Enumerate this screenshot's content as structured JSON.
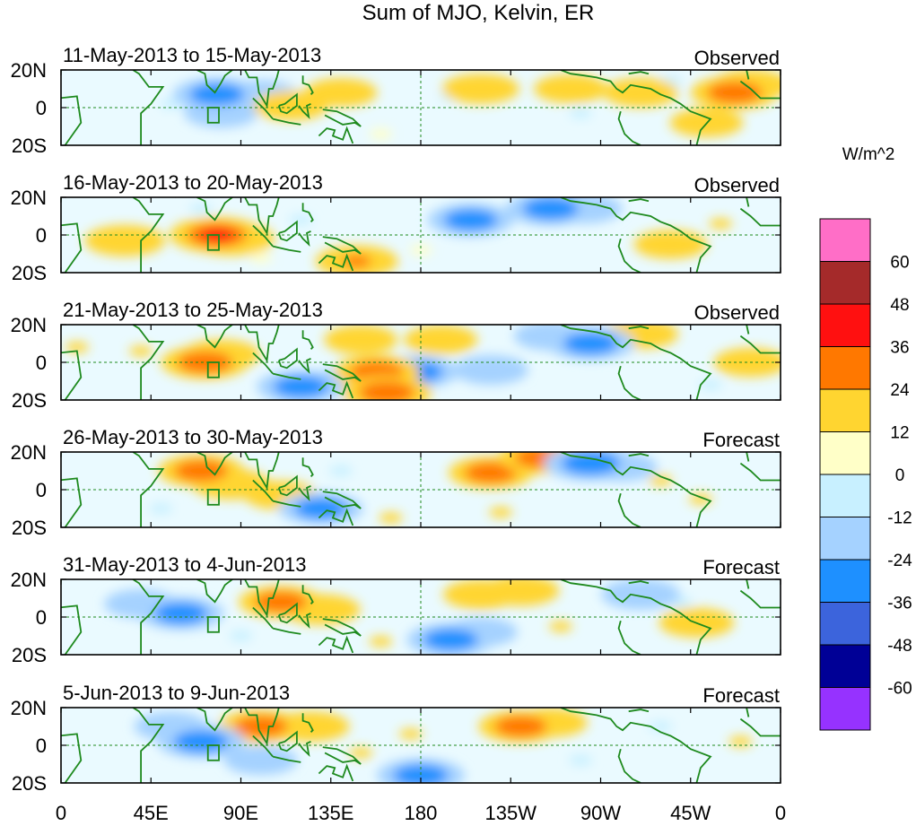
{
  "chart_data": {
    "type": "heatmap",
    "title": "Sum of MJO, Kelvin, ER",
    "units_label": "W/m^2",
    "x_ticks": [
      "0",
      "45E",
      "90E",
      "135E",
      "180",
      "135W",
      "90W",
      "45W",
      "0"
    ],
    "x_tick_lon": [
      0,
      45,
      90,
      135,
      180,
      225,
      270,
      315,
      360
    ],
    "y_ticks": [
      "20N",
      "0",
      "20S"
    ],
    "y_tick_lat": [
      20,
      0,
      -20
    ],
    "lat_range": [
      -20,
      20
    ],
    "lon_range": [
      0,
      360
    ],
    "reference_lines": {
      "equator_lat": 0,
      "dateline_lon": 180
    },
    "colorbar": {
      "levels": [
        -60,
        -48,
        -36,
        -24,
        -12,
        0,
        12,
        24,
        36,
        48,
        60
      ],
      "level_labels": [
        "60",
        "48",
        "36",
        "24",
        "12",
        "0",
        "-12",
        "-24",
        "-36",
        "-48",
        "-60"
      ],
      "colors_top_to_bottom": [
        "#ff6ec7",
        "#a52a2a",
        "#ff1010",
        "#ff7800",
        "#ffd530",
        "#ffffc8",
        "#c8f0ff",
        "#a5d2ff",
        "#1e90ff",
        "#3c64dc",
        "#000096",
        "#9632ff"
      ]
    },
    "panels": [
      {
        "period": "11-May-2013 to 15-May-2013",
        "status": "Observed",
        "features": [
          {
            "lon": 78,
            "lat": 7,
            "value": -30
          },
          {
            "lon": 100,
            "lat": 7,
            "value": -14
          },
          {
            "lon": 115,
            "lat": 1,
            "value": 16
          },
          {
            "lon": 140,
            "lat": 8,
            "value": 13
          },
          {
            "lon": 80,
            "lat": -3,
            "value": -14
          },
          {
            "lon": 55,
            "lat": 2,
            "value": -10
          },
          {
            "lon": 210,
            "lat": 10,
            "value": 18
          },
          {
            "lon": 195,
            "lat": 6,
            "value": -10
          },
          {
            "lon": 255,
            "lat": 10,
            "value": 14
          },
          {
            "lon": 290,
            "lat": 8,
            "value": 16
          },
          {
            "lon": 337,
            "lat": 8,
            "value": 30
          },
          {
            "lon": 345,
            "lat": 12,
            "value": 20
          },
          {
            "lon": 323,
            "lat": -8,
            "value": 14
          },
          {
            "lon": 305,
            "lat": 14,
            "value": -12
          },
          {
            "lon": 260,
            "lat": -3,
            "value": -10
          },
          {
            "lon": 160,
            "lat": -14,
            "value": 10
          }
        ]
      },
      {
        "period": "16-May-2013 to 20-May-2013",
        "status": "Observed",
        "features": [
          {
            "lon": 78,
            "lat": 0,
            "value": 38
          },
          {
            "lon": 85,
            "lat": -2,
            "value": 30
          },
          {
            "lon": 32,
            "lat": -3,
            "value": 22
          },
          {
            "lon": 148,
            "lat": -14,
            "value": 24
          },
          {
            "lon": 120,
            "lat": 8,
            "value": -12
          },
          {
            "lon": 205,
            "lat": 8,
            "value": -28
          },
          {
            "lon": 245,
            "lat": 14,
            "value": -32
          },
          {
            "lon": 262,
            "lat": 14,
            "value": -16
          },
          {
            "lon": 305,
            "lat": -5,
            "value": 14
          },
          {
            "lon": 330,
            "lat": 6,
            "value": 12
          },
          {
            "lon": 70,
            "lat": 14,
            "value": -10
          },
          {
            "lon": 180,
            "lat": -8,
            "value": 10
          },
          {
            "lon": 100,
            "lat": -12,
            "value": 10
          }
        ]
      },
      {
        "period": "21-May-2013 to 25-May-2013",
        "status": "Observed",
        "features": [
          {
            "lon": 72,
            "lat": 0,
            "value": 30
          },
          {
            "lon": 80,
            "lat": 4,
            "value": 20
          },
          {
            "lon": 158,
            "lat": -5,
            "value": 28
          },
          {
            "lon": 163,
            "lat": -16,
            "value": 32
          },
          {
            "lon": 120,
            "lat": -13,
            "value": -30
          },
          {
            "lon": 145,
            "lat": -10,
            "value": -18
          },
          {
            "lon": 178,
            "lat": -5,
            "value": -26
          },
          {
            "lon": 215,
            "lat": -4,
            "value": -16
          },
          {
            "lon": 265,
            "lat": 10,
            "value": -30
          },
          {
            "lon": 245,
            "lat": 14,
            "value": -14
          },
          {
            "lon": 150,
            "lat": 12,
            "value": 14
          },
          {
            "lon": 190,
            "lat": 12,
            "value": 14
          },
          {
            "lon": 290,
            "lat": 15,
            "value": 16
          },
          {
            "lon": 345,
            "lat": 0,
            "value": 14
          },
          {
            "lon": 40,
            "lat": 6,
            "value": 12
          },
          {
            "lon": 8,
            "lat": 8,
            "value": 12
          },
          {
            "lon": 325,
            "lat": -12,
            "value": -12
          }
        ]
      },
      {
        "period": "26-May-2013 to 30-May-2013",
        "status": "Forecast",
        "features": [
          {
            "lon": 70,
            "lat": 10,
            "value": 28
          },
          {
            "lon": 85,
            "lat": 3,
            "value": 20
          },
          {
            "lon": 130,
            "lat": -10,
            "value": -26
          },
          {
            "lon": 110,
            "lat": -3,
            "value": 14
          },
          {
            "lon": 215,
            "lat": 9,
            "value": 26
          },
          {
            "lon": 240,
            "lat": 17,
            "value": 26
          },
          {
            "lon": 265,
            "lat": 14,
            "value": -36
          },
          {
            "lon": 280,
            "lat": 12,
            "value": -14
          },
          {
            "lon": 140,
            "lat": 10,
            "value": -12
          },
          {
            "lon": 50,
            "lat": -10,
            "value": -12
          },
          {
            "lon": 220,
            "lat": -12,
            "value": 12
          },
          {
            "lon": 300,
            "lat": 5,
            "value": 12
          },
          {
            "lon": 320,
            "lat": -5,
            "value": 12
          },
          {
            "lon": 165,
            "lat": -15,
            "value": 12
          }
        ]
      },
      {
        "period": "31-May-2013 to 4-Jun-2013",
        "status": "Forecast",
        "features": [
          {
            "lon": 110,
            "lat": 8,
            "value": 26
          },
          {
            "lon": 130,
            "lat": 4,
            "value": 20
          },
          {
            "lon": 60,
            "lat": 2,
            "value": -28
          },
          {
            "lon": 40,
            "lat": 7,
            "value": -14
          },
          {
            "lon": 195,
            "lat": -12,
            "value": -30
          },
          {
            "lon": 210,
            "lat": -8,
            "value": -14
          },
          {
            "lon": 210,
            "lat": 12,
            "value": 16
          },
          {
            "lon": 230,
            "lat": 14,
            "value": 18
          },
          {
            "lon": 290,
            "lat": 12,
            "value": -20
          },
          {
            "lon": 310,
            "lat": 8,
            "value": -12
          },
          {
            "lon": 318,
            "lat": -3,
            "value": 16
          },
          {
            "lon": 250,
            "lat": -5,
            "value": 12
          },
          {
            "lon": 90,
            "lat": -10,
            "value": -12
          },
          {
            "lon": 160,
            "lat": -13,
            "value": 12
          }
        ]
      },
      {
        "period": "5-Jun-2013 to 9-Jun-2013",
        "status": "Forecast",
        "features": [
          {
            "lon": 100,
            "lat": 10,
            "value": 28
          },
          {
            "lon": 125,
            "lat": 10,
            "value": 18
          },
          {
            "lon": 230,
            "lat": 10,
            "value": 26
          },
          {
            "lon": 245,
            "lat": 12,
            "value": 14
          },
          {
            "lon": 70,
            "lat": 2,
            "value": -30
          },
          {
            "lon": 55,
            "lat": 10,
            "value": -14
          },
          {
            "lon": 100,
            "lat": -8,
            "value": -14
          },
          {
            "lon": 180,
            "lat": -16,
            "value": -30
          },
          {
            "lon": 175,
            "lat": 6,
            "value": 12
          },
          {
            "lon": 300,
            "lat": 10,
            "value": -12
          },
          {
            "lon": 340,
            "lat": 2,
            "value": 12
          },
          {
            "lon": 150,
            "lat": -4,
            "value": 12
          },
          {
            "lon": 260,
            "lat": -8,
            "value": -12
          }
        ]
      }
    ]
  }
}
